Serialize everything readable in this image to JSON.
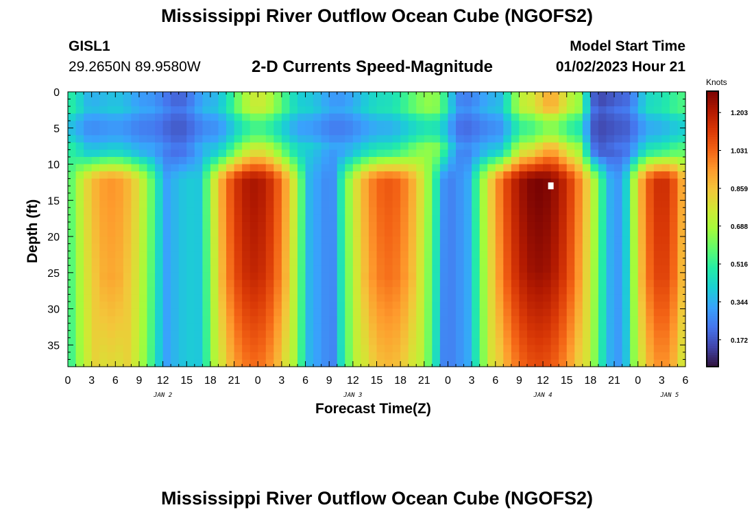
{
  "title_top": "Mississippi River Outflow Ocean Cube (NGOFS2)",
  "title_bottom": "Mississippi River Outflow Ocean Cube (NGOFS2)",
  "station": {
    "name": "GISL1",
    "coords": "29.2650N  89.9580W"
  },
  "model_start": {
    "label": "Model Start Time",
    "value": "01/02/2023 Hour 21"
  },
  "colormap": [
    "#30123b",
    "#4145ab",
    "#4675ed",
    "#39a2fc",
    "#1bcfd4",
    "#24eca6",
    "#61fc6c",
    "#a4fc3b",
    "#d1e834",
    "#f3c63a",
    "#fe9b2d",
    "#f36315",
    "#d93806",
    "#b11901",
    "#7a0403"
  ],
  "chart_data": {
    "type": "heatmap",
    "title": "2-D Currents Speed-Magnitude",
    "xlabel": "Forecast Time(Z)",
    "ylabel": "Depth (ft)",
    "x_hours": [
      0,
      78
    ],
    "x_ticks": [
      "0",
      "3",
      "6",
      "9",
      "12",
      "15",
      "18",
      "21",
      "0",
      "3",
      "6",
      "9",
      "12",
      "15",
      "18",
      "21",
      "0",
      "3",
      "6",
      "9",
      "12",
      "15",
      "18",
      "21",
      "0",
      "3",
      "6"
    ],
    "date_labels": [
      {
        "hour": 12,
        "label": "JAN 2"
      },
      {
        "hour": 36,
        "label": "JAN 3"
      },
      {
        "hour": 60,
        "label": "JAN 4"
      },
      {
        "hour": 76,
        "label": "JAN 5"
      }
    ],
    "ylim": [
      0,
      38
    ],
    "y_ticks": [
      0,
      5,
      10,
      15,
      20,
      25,
      30,
      35
    ],
    "colorbar": {
      "title": "Knots",
      "range": [
        0.05,
        1.3
      ],
      "ticks": [
        1.203,
        1.031,
        0.859,
        0.688,
        0.516,
        0.344,
        0.172
      ]
    },
    "grid": {
      "nx": 78,
      "ny": 38
    },
    "surface_band": [
      {
        "hour": 0,
        "speed": 0.5
      },
      {
        "hour": 3,
        "speed": 0.35
      },
      {
        "hour": 6,
        "speed": 0.38
      },
      {
        "hour": 10,
        "speed": 0.3
      },
      {
        "hour": 14,
        "speed": 0.2
      },
      {
        "hour": 18,
        "speed": 0.35
      },
      {
        "hour": 24,
        "speed": 0.75
      },
      {
        "hour": 30,
        "speed": 0.4
      },
      {
        "hour": 34,
        "speed": 0.3
      },
      {
        "hour": 40,
        "speed": 0.45
      },
      {
        "hour": 46,
        "speed": 0.65
      },
      {
        "hour": 50,
        "speed": 0.25
      },
      {
        "hour": 54,
        "speed": 0.35
      },
      {
        "hour": 58,
        "speed": 0.75
      },
      {
        "hour": 61,
        "speed": 0.9
      },
      {
        "hour": 64,
        "speed": 0.7
      },
      {
        "hour": 67,
        "speed": 0.15
      },
      {
        "hour": 70,
        "speed": 0.2
      },
      {
        "hour": 74,
        "speed": 0.45
      },
      {
        "hour": 78,
        "speed": 0.55
      }
    ],
    "deep_cores": [
      {
        "start_hour": 0,
        "end_hour": 11,
        "peak_hour": 5,
        "peak_speed": 0.95
      },
      {
        "start_hour": 18,
        "end_hour": 29,
        "peak_hour": 23,
        "peak_speed": 1.22
      },
      {
        "start_hour": 35,
        "end_hour": 46,
        "peak_hour": 41,
        "peak_speed": 1.05
      },
      {
        "start_hour": 52,
        "end_hour": 67,
        "peak_hour": 60,
        "peak_speed": 1.3
      },
      {
        "start_hour": 72,
        "end_hour": 78,
        "peak_hour": 78,
        "peak_speed": 1.15
      }
    ],
    "marker": {
      "hour": 61,
      "depth": 13
    }
  }
}
